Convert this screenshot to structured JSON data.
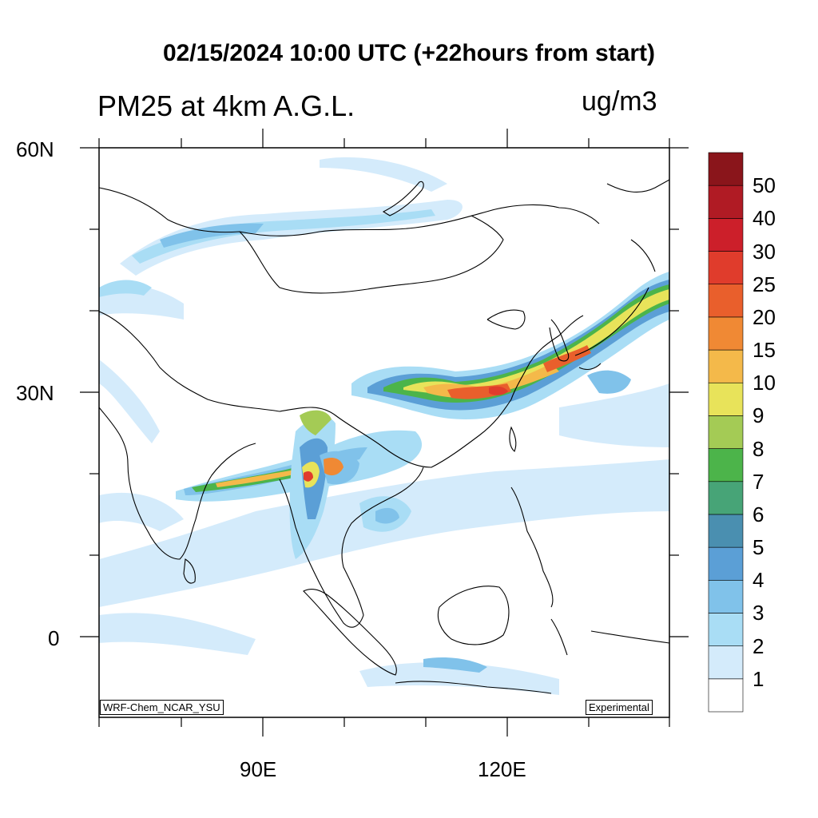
{
  "header": {
    "title": "02/15/2024 10:00 UTC (+22hours from start)",
    "subtitle": "PM25 at 4km A.G.L.",
    "units": "ug/m3"
  },
  "map": {
    "lat_labels": [
      "60N",
      "30N",
      "0"
    ],
    "lon_labels": [
      "90E",
      "120E"
    ],
    "model_tag": "WRF-Chem_NCAR_YSU",
    "status_tag": "Experimental"
  },
  "colorbar": {
    "levels": [
      "1",
      "2",
      "3",
      "4",
      "5",
      "6",
      "7",
      "8",
      "9",
      "10",
      "15",
      "20",
      "25",
      "30",
      "40",
      "50"
    ],
    "colors": [
      "#ffffff",
      "#d4ebfb",
      "#a9ddf5",
      "#80c2ea",
      "#5b9fd6",
      "#4a8fb0",
      "#47a477",
      "#4cb44a",
      "#a4cb55",
      "#e8e35a",
      "#f4b94a",
      "#f08934",
      "#e95f2c",
      "#e03c2c",
      "#cc1f2a",
      "#b01b24",
      "#8a151b"
    ]
  }
}
